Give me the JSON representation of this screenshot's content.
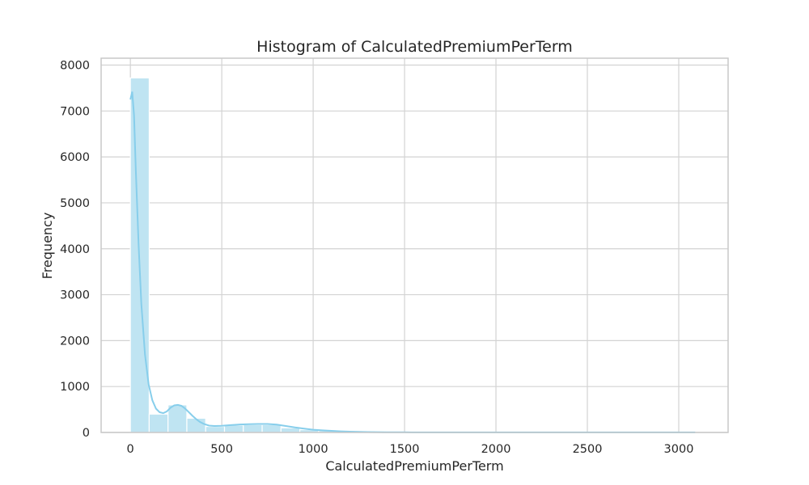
{
  "chart_data": {
    "type": "bar",
    "title": "Histogram of CalculatedPremiumPerTerm",
    "xlabel": "CalculatedPremiumPerTerm",
    "ylabel": "Frequency",
    "xlim": [
      -160,
      3270
    ],
    "ylim": [
      0,
      8150
    ],
    "xticks": [
      0,
      500,
      1000,
      1500,
      2000,
      2500,
      3000
    ],
    "yticks": [
      0,
      1000,
      2000,
      3000,
      4000,
      5000,
      6000,
      7000,
      8000
    ],
    "grid": true,
    "bin_width": 103,
    "bins": [
      {
        "x0": 0,
        "x1": 103,
        "value": 7720
      },
      {
        "x0": 103,
        "x1": 206,
        "value": 400
      },
      {
        "x0": 206,
        "x1": 309,
        "value": 600
      },
      {
        "x0": 309,
        "x1": 412,
        "value": 310
      },
      {
        "x0": 412,
        "x1": 515,
        "value": 130
      },
      {
        "x0": 515,
        "x1": 618,
        "value": 160
      },
      {
        "x0": 618,
        "x1": 721,
        "value": 170
      },
      {
        "x0": 721,
        "x1": 824,
        "value": 170
      },
      {
        "x0": 824,
        "x1": 927,
        "value": 100
      },
      {
        "x0": 927,
        "x1": 1030,
        "value": 60
      },
      {
        "x0": 1030,
        "x1": 1133,
        "value": 40
      },
      {
        "x0": 1133,
        "x1": 1236,
        "value": 20
      },
      {
        "x0": 1236,
        "x1": 1339,
        "value": 10
      },
      {
        "x0": 1339,
        "x1": 1442,
        "value": 5
      },
      {
        "x0": 1442,
        "x1": 1545,
        "value": 3
      },
      {
        "x0": 1545,
        "x1": 1648,
        "value": 2
      },
      {
        "x0": 1648,
        "x1": 1751,
        "value": 2
      },
      {
        "x0": 1751,
        "x1": 1854,
        "value": 1
      },
      {
        "x0": 1854,
        "x1": 1957,
        "value": 1
      },
      {
        "x0": 1957,
        "x1": 2060,
        "value": 1
      },
      {
        "x0": 2060,
        "x1": 2163,
        "value": 1
      },
      {
        "x0": 2163,
        "x1": 2266,
        "value": 1
      },
      {
        "x0": 2266,
        "x1": 2369,
        "value": 1
      },
      {
        "x0": 2369,
        "x1": 2472,
        "value": 1
      },
      {
        "x0": 2472,
        "x1": 2575,
        "value": 1
      },
      {
        "x0": 2575,
        "x1": 2678,
        "value": 1
      },
      {
        "x0": 2678,
        "x1": 2781,
        "value": 1
      },
      {
        "x0": 2781,
        "x1": 2884,
        "value": 1
      },
      {
        "x0": 2884,
        "x1": 2987,
        "value": 1
      },
      {
        "x0": 2987,
        "x1": 3090,
        "value": 1
      }
    ],
    "kde": {
      "x": [
        0,
        10,
        20,
        30,
        45,
        60,
        80,
        100,
        120,
        140,
        160,
        180,
        200,
        220,
        240,
        260,
        280,
        300,
        320,
        340,
        360,
        380,
        400,
        430,
        460,
        500,
        550,
        600,
        650,
        700,
        750,
        800,
        850,
        900,
        950,
        1000,
        1050,
        1100,
        1150,
        1200,
        1250,
        1300,
        1400,
        1500,
        1600,
        1800,
        2000,
        2500,
        3000,
        3090
      ],
      "y": [
        7250,
        7420,
        6900,
        5700,
        4100,
        2800,
        1700,
        1050,
        700,
        520,
        440,
        420,
        460,
        540,
        590,
        600,
        580,
        520,
        440,
        360,
        290,
        230,
        190,
        150,
        140,
        145,
        160,
        175,
        180,
        185,
        185,
        170,
        140,
        110,
        85,
        60,
        45,
        35,
        25,
        18,
        12,
        8,
        5,
        3,
        2,
        2,
        1,
        1,
        1,
        1
      ]
    },
    "colors": {
      "bar_fill": "#bfe4f2",
      "kde_line": "#87ceeb",
      "grid": "#d3d3d3",
      "frame": "#c8c8c8",
      "text": "#262626"
    }
  }
}
